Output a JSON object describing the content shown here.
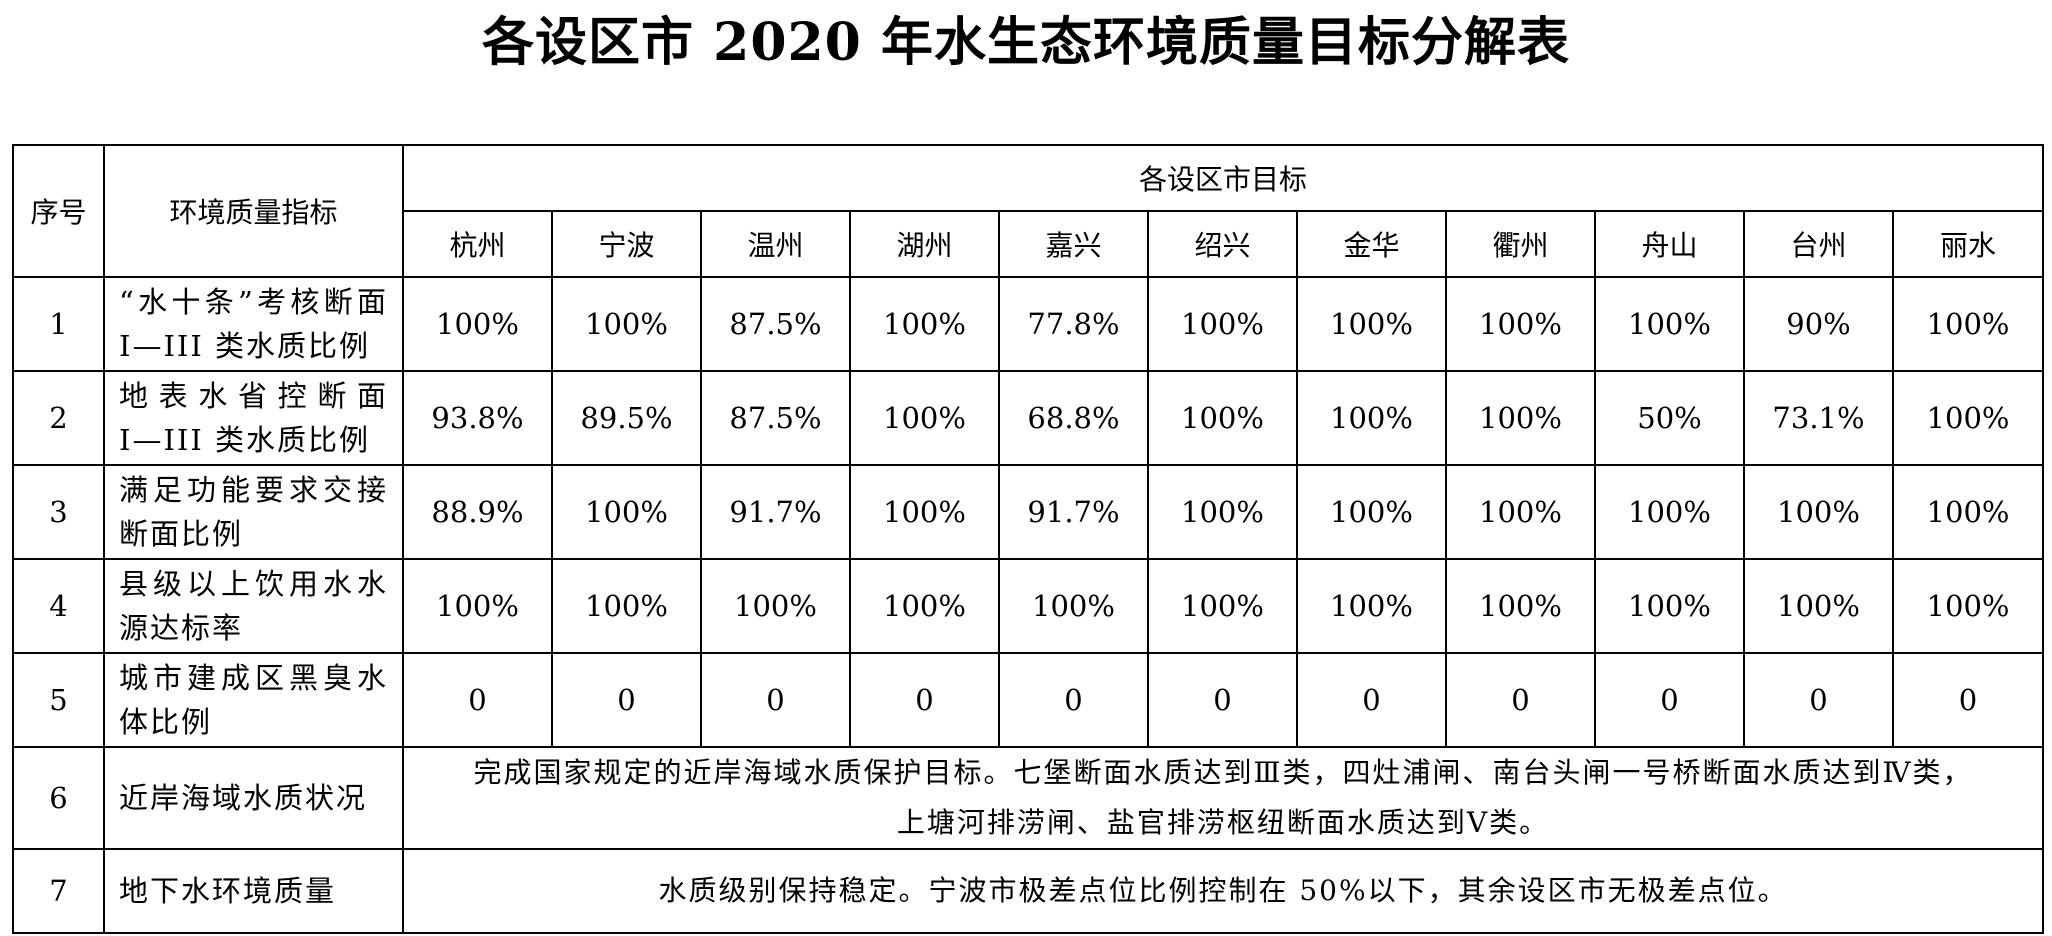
{
  "title": "各设区市 2020 年水生态环境质量目标分解表",
  "header": {
    "seq": "序号",
    "indicator": "环境质量指标",
    "group": "各设区市目标",
    "cities": [
      "杭州",
      "宁波",
      "温州",
      "湖州",
      "嘉兴",
      "绍兴",
      "金华",
      "衢州",
      "舟山",
      "台州",
      "丽水"
    ]
  },
  "rows": [
    {
      "seq": "1",
      "line1": "“水十条”考核断面",
      "line2": "I—III 类水质比例",
      "values": [
        "100%",
        "100%",
        "87.5%",
        "100%",
        "77.8%",
        "100%",
        "100%",
        "100%",
        "100%",
        "90%",
        "100%"
      ]
    },
    {
      "seq": "2",
      "line1": "地表水省控断面",
      "line2": "I—III 类水质比例",
      "values": [
        "93.8%",
        "89.5%",
        "87.5%",
        "100%",
        "68.8%",
        "100%",
        "100%",
        "100%",
        "50%",
        "73.1%",
        "100%"
      ]
    },
    {
      "seq": "3",
      "line1": "满足功能要求交接",
      "line2": "断面比例",
      "values": [
        "88.9%",
        "100%",
        "91.7%",
        "100%",
        "91.7%",
        "100%",
        "100%",
        "100%",
        "100%",
        "100%",
        "100%"
      ]
    },
    {
      "seq": "4",
      "line1": "县级以上饮用水水",
      "line2": "源达标率",
      "values": [
        "100%",
        "100%",
        "100%",
        "100%",
        "100%",
        "100%",
        "100%",
        "100%",
        "100%",
        "100%",
        "100%"
      ]
    },
    {
      "seq": "5",
      "line1": "城市建成区黑臭水",
      "line2": "体比例",
      "values": [
        "0",
        "0",
        "0",
        "0",
        "0",
        "0",
        "0",
        "0",
        "0",
        "0",
        "0"
      ]
    }
  ],
  "row6": {
    "seq": "6",
    "indicator": "近岸海域水质状况",
    "text_line1": "完成国家规定的近岸海域水质保护目标。七堡断面水质达到Ⅲ类，四灶浦闸、南台头闸一号桥断面水质达到Ⅳ类，",
    "text_line2": "上塘河排涝闸、盐官排涝枢纽断面水质达到Ⅴ类。"
  },
  "row7": {
    "seq": "7",
    "indicator": "地下水环境质量",
    "text": "水质级别保持稳定。宁波市极差点位比例控制在 50%以下，其余设区市无极差点位。"
  }
}
